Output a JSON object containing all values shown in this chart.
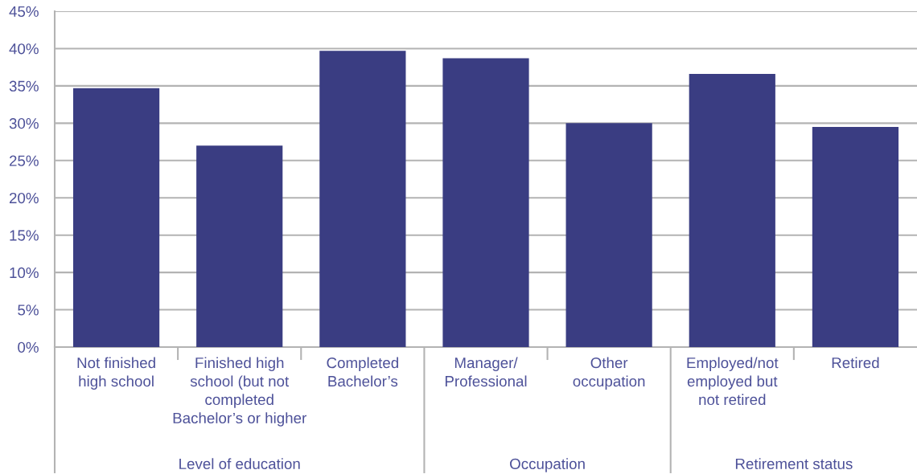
{
  "chart_data": {
    "type": "bar",
    "categories": [
      "Not finished\nhigh school",
      "Finished high\nschool (but not\ncompleted\nBachelor’s or higher",
      "Completed\nBachelor’s",
      "Manager/\nProfessional",
      "Other\noccupation",
      "Employed/not\nemployed but\nnot retired",
      "Retired"
    ],
    "values": [
      34.7,
      27.0,
      39.7,
      38.7,
      30.0,
      36.6,
      29.5
    ],
    "color": "#3a3d82",
    "ylim": [
      0,
      45
    ],
    "yticks": [
      {
        "value": 0,
        "label": "0%"
      },
      {
        "value": 5,
        "label": "5%"
      },
      {
        "value": 10,
        "label": "10%"
      },
      {
        "value": 15,
        "label": "15%"
      },
      {
        "value": 20,
        "label": "20%"
      },
      {
        "value": 25,
        "label": "25%"
      },
      {
        "value": 30,
        "label": "30%"
      },
      {
        "value": 35,
        "label": "35%"
      },
      {
        "value": 40,
        "label": "40%"
      },
      {
        "value": 45,
        "label": "45%"
      }
    ],
    "grid": "y",
    "legend": false,
    "annotations": [
      "Level of education",
      "Occupation",
      "Retirement status"
    ]
  }
}
